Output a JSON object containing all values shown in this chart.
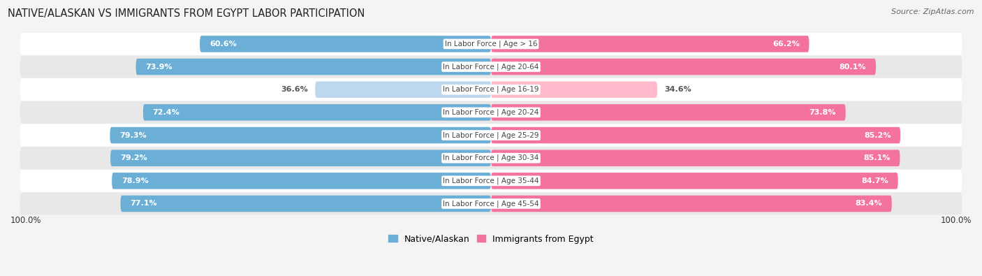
{
  "title": "NATIVE/ALASKAN VS IMMIGRANTS FROM EGYPT LABOR PARTICIPATION",
  "source": "Source: ZipAtlas.com",
  "categories": [
    "In Labor Force | Age > 16",
    "In Labor Force | Age 20-64",
    "In Labor Force | Age 16-19",
    "In Labor Force | Age 20-24",
    "In Labor Force | Age 25-29",
    "In Labor Force | Age 30-34",
    "In Labor Force | Age 35-44",
    "In Labor Force | Age 45-54"
  ],
  "native_values": [
    60.6,
    73.9,
    36.6,
    72.4,
    79.3,
    79.2,
    78.9,
    77.1
  ],
  "immigrant_values": [
    66.2,
    80.1,
    34.6,
    73.8,
    85.2,
    85.1,
    84.7,
    83.4
  ],
  "native_color_dark": "#6BAED6",
  "native_color_light": "#BDD7EE",
  "immigrant_color_dark": "#F472A0",
  "immigrant_color_light": "#FFBBCC",
  "bg_color": "#F4F4F4",
  "row_bg_light": "#FFFFFF",
  "row_bg_dark": "#E8E8E8",
  "label_white": "#FFFFFF",
  "label_dark": "#555555",
  "max_value": 100.0,
  "legend_native": "Native/Alaskan",
  "legend_immigrant": "Immigrants from Egypt"
}
